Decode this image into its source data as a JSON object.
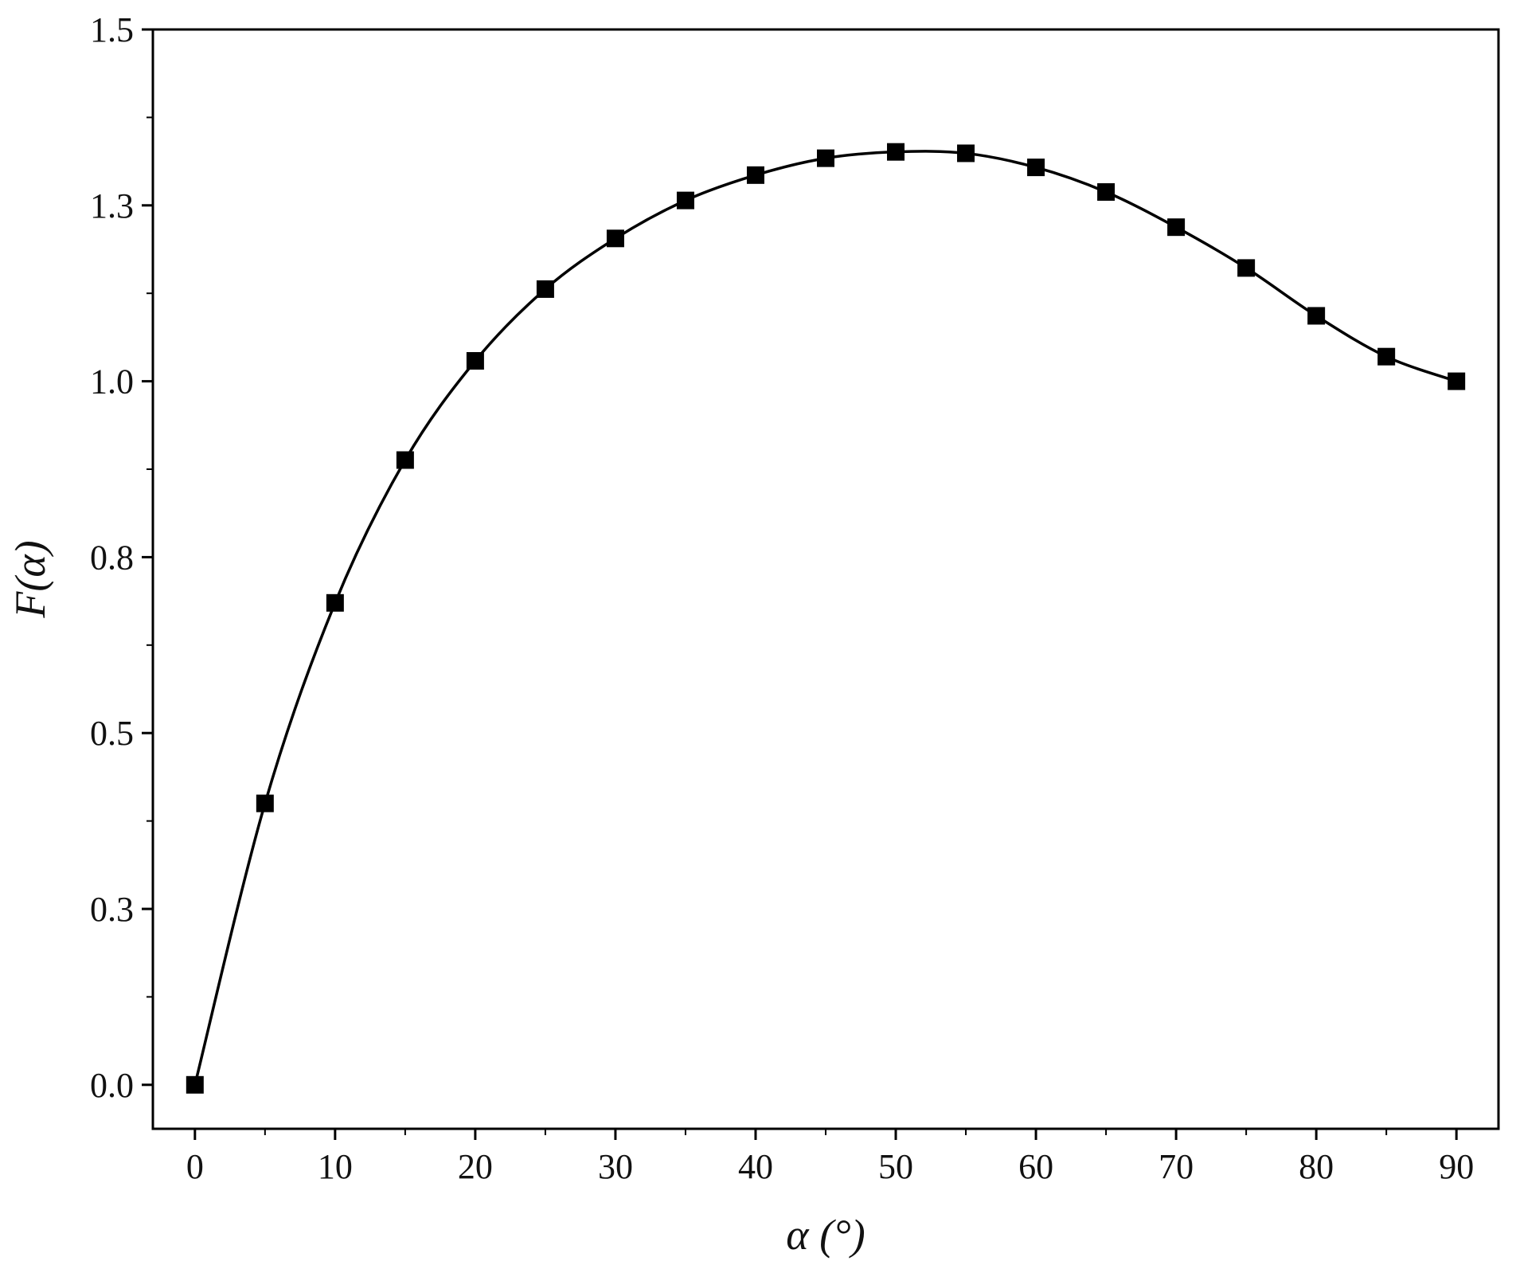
{
  "chart_data": {
    "type": "line",
    "x_label": "α (°)",
    "y_label": "F(α)",
    "x": [
      0,
      5,
      10,
      15,
      20,
      25,
      30,
      35,
      40,
      45,
      50,
      55,
      60,
      65,
      70,
      75,
      80,
      85,
      90
    ],
    "y": [
      0,
      0.4,
      0.685,
      0.888,
      1.029,
      1.131,
      1.203,
      1.257,
      1.293,
      1.317,
      1.326,
      1.324,
      1.304,
      1.269,
      1.219,
      1.161,
      1.093,
      1.035,
      1.0
    ],
    "color": "#000000",
    "marker": "square",
    "xlim": [
      -3,
      93
    ],
    "ylim": [
      -0.0625,
      1.5
    ],
    "xticks": [
      0,
      10,
      20,
      30,
      40,
      50,
      60,
      70,
      80,
      90
    ],
    "yticks": [
      {
        "value": 0,
        "label": "0.0"
      },
      {
        "value": 0.25,
        "label": "0.3"
      },
      {
        "value": 0.5,
        "label": "0.5"
      },
      {
        "value": 0.75,
        "label": "0.8"
      },
      {
        "value": 1.0,
        "label": "1.0"
      },
      {
        "value": 1.25,
        "label": "1.3"
      },
      {
        "value": 1.5,
        "label": "1.5"
      }
    ],
    "grid": false
  }
}
